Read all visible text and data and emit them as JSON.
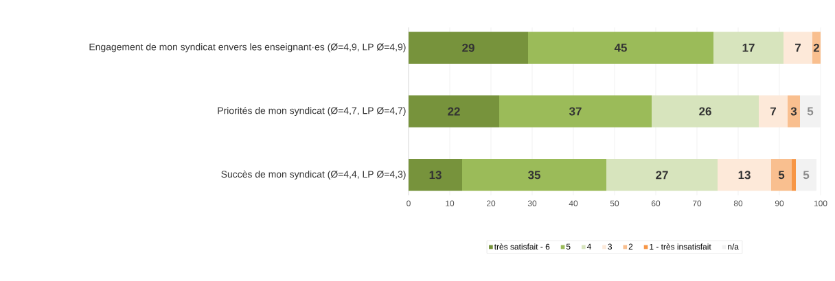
{
  "chart_data": {
    "type": "bar",
    "orientation": "horizontal",
    "stacked": true,
    "categories": [
      "Engagement de mon syndicat envers les enseignant·es (Ø=4,9, LP Ø=4,9)",
      "Priorités de mon syndicat (Ø=4,7, LP Ø=4,7)",
      "Succès de mon syndicat (Ø=4,4, LP Ø=4,3)"
    ],
    "series": [
      {
        "name": "très satisfait - 6",
        "color": "#77933c",
        "values": [
          29,
          22,
          13
        ],
        "value_labels": [
          "29",
          "22",
          "13"
        ]
      },
      {
        "name": "5",
        "color": "#9bbb59",
        "values": [
          45,
          37,
          35
        ],
        "value_labels": [
          "45",
          "37",
          "35"
        ]
      },
      {
        "name": "4",
        "color": "#d7e4bd",
        "values": [
          17,
          26,
          27
        ],
        "value_labels": [
          "17",
          "26",
          "27"
        ]
      },
      {
        "name": "3",
        "color": "#fde9d9",
        "values": [
          7,
          7,
          13
        ],
        "value_labels": [
          "7",
          "7",
          "13"
        ]
      },
      {
        "name": "2",
        "color": "#f9bf8f",
        "values": [
          2,
          3,
          5
        ],
        "value_labels": [
          "2",
          "3",
          "5"
        ]
      },
      {
        "name": "1 - très insatisfait",
        "color": "#f79646",
        "values": [
          0,
          0,
          1
        ],
        "value_labels": [
          null,
          null,
          null
        ]
      },
      {
        "name": "n/a",
        "color": "#f2f2f2",
        "values": [
          0,
          5,
          5
        ],
        "value_labels": [
          null,
          "5",
          "5"
        ]
      }
    ],
    "xlim": [
      0,
      100
    ],
    "xticks": [
      0,
      10,
      20,
      30,
      40,
      50,
      60,
      70,
      80,
      90,
      100
    ],
    "grid": "x",
    "legend": "bottom"
  }
}
